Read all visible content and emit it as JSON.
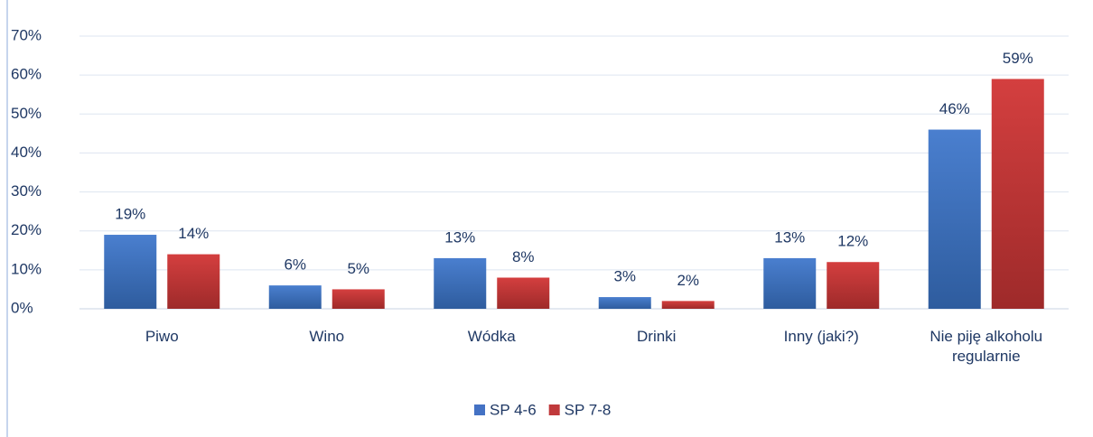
{
  "chart_data": {
    "type": "bar",
    "categories": [
      "Piwo",
      "Wino",
      "Wódka",
      "Drinki",
      "Inny (jaki?)",
      "Nie piję alkoholu regularnie"
    ],
    "series": [
      {
        "name": "SP 4-6",
        "color": "#4472c4",
        "values": [
          19,
          6,
          13,
          3,
          13,
          46
        ],
        "value_labels": [
          "19%",
          "6%",
          "13%",
          "3%",
          "13%",
          "46%"
        ]
      },
      {
        "name": "SP 7-8",
        "color": "#c0393b",
        "values": [
          14,
          5,
          8,
          2,
          12,
          59
        ],
        "value_labels": [
          "14%",
          "5%",
          "8%",
          "2%",
          "12%",
          "59%"
        ]
      }
    ],
    "ylim": [
      0,
      70
    ],
    "yticks": [
      {
        "value": 0,
        "label": "0%"
      },
      {
        "value": 10,
        "label": "10%"
      },
      {
        "value": 20,
        "label": "20%"
      },
      {
        "value": 30,
        "label": "30%"
      },
      {
        "value": 40,
        "label": "40%"
      },
      {
        "value": 50,
        "label": "50%"
      },
      {
        "value": 60,
        "label": "60%"
      },
      {
        "value": 70,
        "label": "70%"
      }
    ],
    "grid": true,
    "legend": "bottom"
  }
}
